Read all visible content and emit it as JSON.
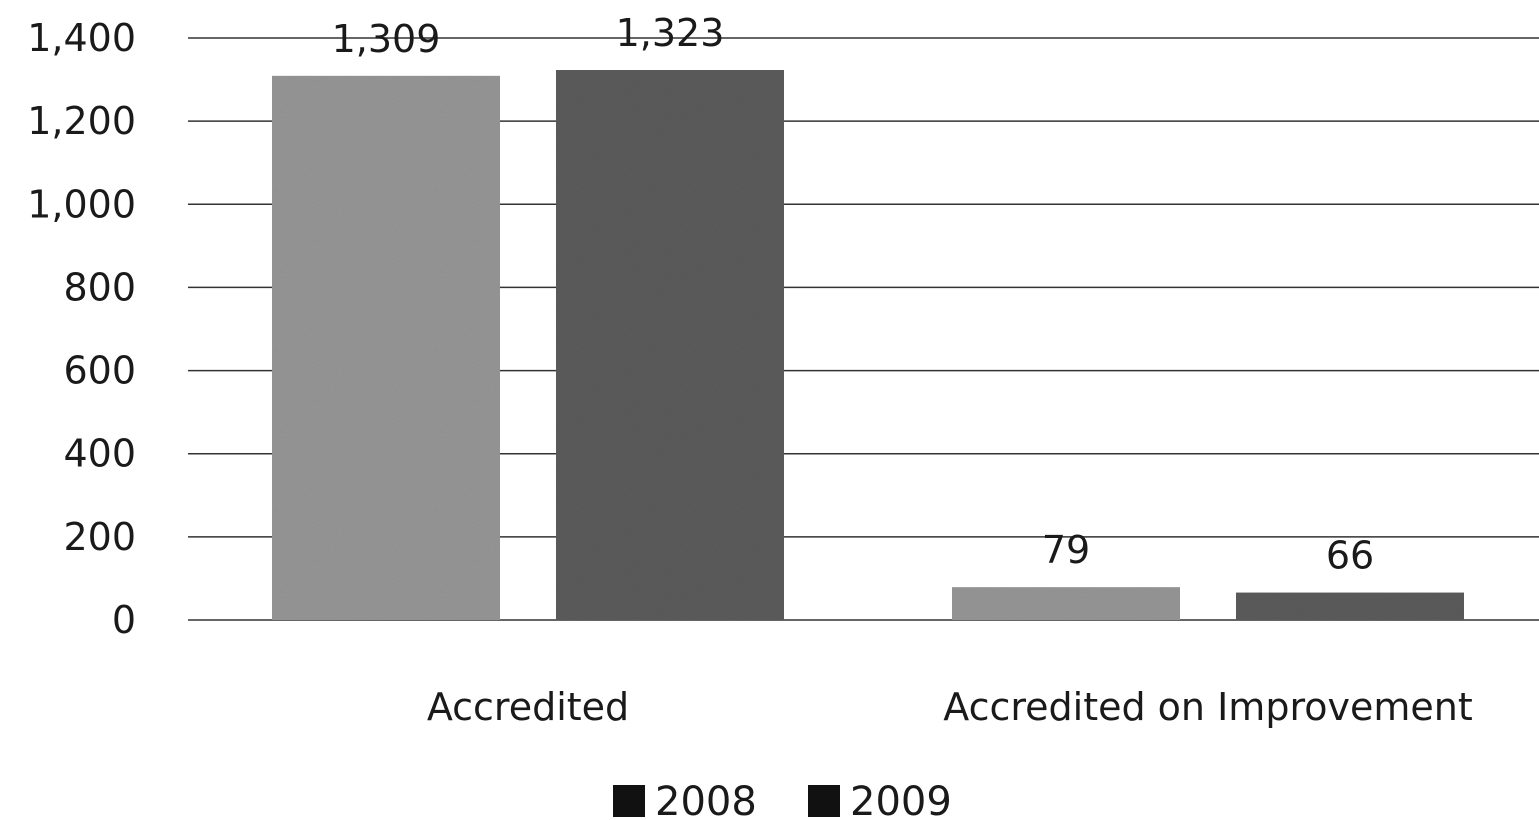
{
  "chart_data": {
    "type": "bar",
    "categories": [
      "Accredited",
      "Accredited on Improvement"
    ],
    "series": [
      {
        "name": "2008",
        "values": [
          1309,
          79
        ],
        "color": "#9a9a9a"
      },
      {
        "name": "2009",
        "values": [
          1323,
          66
        ],
        "color": "#5e5e5e"
      }
    ],
    "data_labels": [
      "1,309",
      "1,323",
      "79",
      "66"
    ],
    "y_ticks": [
      "0",
      "200",
      "400",
      "600",
      "800",
      "1,000",
      "1,200",
      "1,400"
    ],
    "ylim": [
      0,
      1400
    ],
    "grid": true,
    "legend": {
      "placement": "bottom",
      "swatch_color": "#111111",
      "items": [
        "2008",
        "2009"
      ]
    },
    "title": "",
    "xlabel": "",
    "ylabel": ""
  }
}
